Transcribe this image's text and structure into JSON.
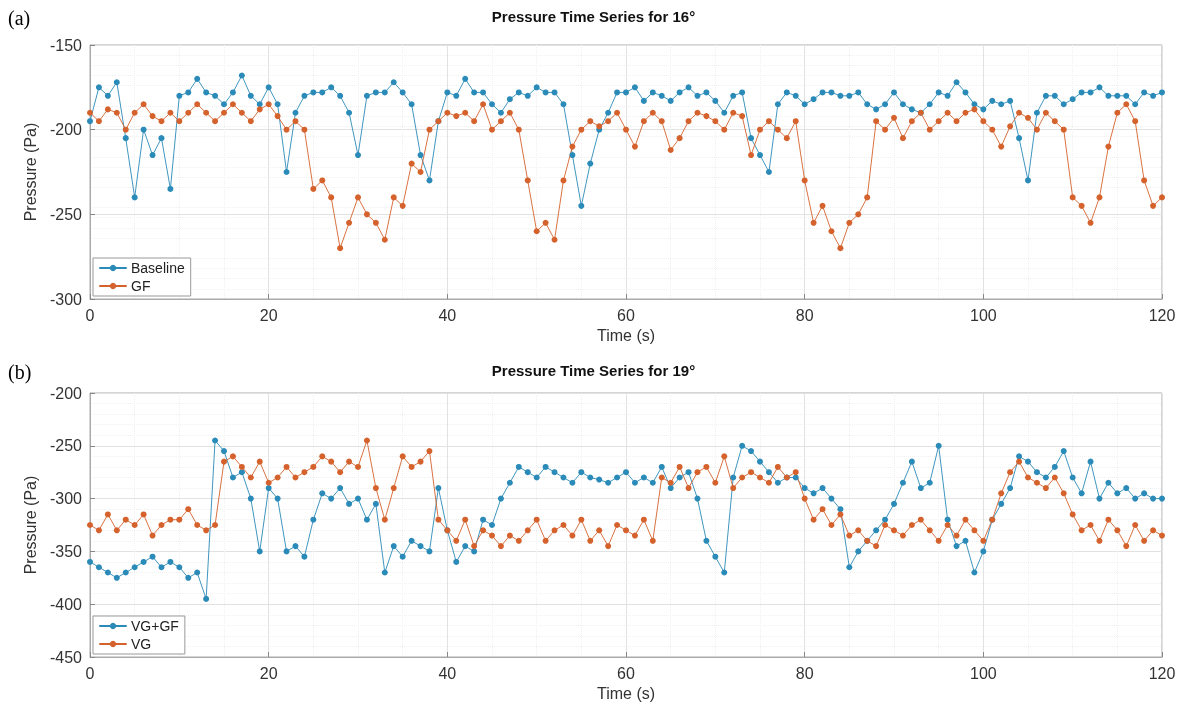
{
  "chart_data": [
    {
      "type": "line",
      "title": "Pressure Time Series for 16°",
      "xlabel": "Time (s)",
      "ylabel": "Pressure (Pa)",
      "annotations": [
        "(a)"
      ],
      "x": [
        0,
        1,
        2,
        3,
        4,
        5,
        6,
        7,
        8,
        9,
        10,
        11,
        12,
        13,
        14,
        15,
        16,
        17,
        18,
        19,
        20,
        21,
        22,
        23,
        24,
        25,
        26,
        27,
        28,
        29,
        30,
        31,
        32,
        33,
        34,
        35,
        36,
        37,
        38,
        39,
        40,
        41,
        42,
        43,
        44,
        45,
        46,
        47,
        48,
        49,
        50,
        51,
        52,
        53,
        54,
        55,
        56,
        57,
        58,
        59,
        60,
        61,
        62,
        63,
        64,
        65,
        66,
        67,
        68,
        69,
        70,
        71,
        72,
        73,
        74,
        75,
        76,
        77,
        78,
        79,
        80,
        81,
        82,
        83,
        84,
        85,
        86,
        87,
        88,
        89,
        90,
        91,
        92,
        93,
        94,
        95,
        96,
        97,
        98,
        99,
        100,
        101,
        102,
        103,
        104,
        105,
        106,
        107,
        108,
        109,
        110,
        111,
        112,
        113,
        114,
        115,
        116,
        117,
        118,
        119,
        120
      ],
      "series": [
        {
          "name": "Baseline",
          "color": "#2a8ab8",
          "values": [
            -195,
            -175,
            -180,
            -172,
            -205,
            -240,
            -200,
            -215,
            -205,
            -235,
            -180,
            -178,
            -170,
            -178,
            -180,
            -185,
            -178,
            -168,
            -180,
            -185,
            -175,
            -185,
            -225,
            -190,
            -180,
            -178,
            -178,
            -175,
            -180,
            -190,
            -215,
            -180,
            -178,
            -178,
            -172,
            -178,
            -185,
            -215,
            -230,
            -195,
            -178,
            -180,
            -170,
            -178,
            -178,
            -185,
            -190,
            -182,
            -178,
            -180,
            -175,
            -178,
            -178,
            -185,
            -215,
            -245,
            -220,
            -200,
            -190,
            -178,
            -178,
            -175,
            -183,
            -178,
            -180,
            -183,
            -178,
            -175,
            -180,
            -178,
            -183,
            -190,
            -180,
            -178,
            -205,
            -215,
            -225,
            -185,
            -178,
            -180,
            -185,
            -182,
            -178,
            -178,
            -180,
            -180,
            -178,
            -185,
            -188,
            -185,
            -178,
            -185,
            -188,
            -190,
            -185,
            -178,
            -180,
            -172,
            -178,
            -185,
            -188,
            -183,
            -185,
            -183,
            -205,
            -230,
            -190,
            -180,
            -180,
            -185,
            -182,
            -178,
            -178,
            -175,
            -180,
            -180,
            -180,
            -185,
            -178,
            -180,
            -178
          ]
        },
        {
          "name": "GF",
          "color": "#d5622c",
          "values": [
            -190,
            -195,
            -188,
            -190,
            -200,
            -190,
            -185,
            -192,
            -195,
            -190,
            -195,
            -190,
            -185,
            -190,
            -195,
            -190,
            -185,
            -190,
            -195,
            -188,
            -185,
            -192,
            -200,
            -195,
            -200,
            -235,
            -230,
            -240,
            -270,
            -255,
            -240,
            -250,
            -255,
            -265,
            -240,
            -245,
            -220,
            -225,
            -200,
            -195,
            -190,
            -192,
            -190,
            -195,
            -185,
            -200,
            -195,
            -190,
            -200,
            -230,
            -260,
            -255,
            -265,
            -230,
            -210,
            -200,
            -195,
            -198,
            -195,
            -190,
            -200,
            -210,
            -195,
            -190,
            -195,
            -212,
            -205,
            -195,
            -190,
            -192,
            -195,
            -200,
            -190,
            -192,
            -215,
            -200,
            -195,
            -200,
            -205,
            -195,
            -230,
            -255,
            -245,
            -260,
            -270,
            -255,
            -250,
            -240,
            -195,
            -200,
            -193,
            -205,
            -195,
            -190,
            -200,
            -195,
            -190,
            -195,
            -190,
            -188,
            -195,
            -200,
            -210,
            -198,
            -190,
            -193,
            -200,
            -190,
            -195,
            -200,
            -240,
            -245,
            -255,
            -240,
            -210,
            -190,
            -185,
            -195,
            -230,
            -245,
            -240
          ]
        }
      ],
      "xlim": [
        0,
        120
      ],
      "xticks": [
        0,
        20,
        40,
        60,
        80,
        100,
        120
      ],
      "ylim": [
        -300,
        -150
      ],
      "yticks": [
        -300,
        -250,
        -200,
        -150
      ],
      "grid": true,
      "legend": "bottom left",
      "marker": "circle",
      "line_style": "solid"
    },
    {
      "type": "line",
      "title": "Pressure Time Series for 19°",
      "xlabel": "Time (s)",
      "ylabel": "Pressure (Pa)",
      "annotations": [
        "(b)"
      ],
      "x": [
        0,
        1,
        2,
        3,
        4,
        5,
        6,
        7,
        8,
        9,
        10,
        11,
        12,
        13,
        14,
        15,
        16,
        17,
        18,
        19,
        20,
        21,
        22,
        23,
        24,
        25,
        26,
        27,
        28,
        29,
        30,
        31,
        32,
        33,
        34,
        35,
        36,
        37,
        38,
        39,
        40,
        41,
        42,
        43,
        44,
        45,
        46,
        47,
        48,
        49,
        50,
        51,
        52,
        53,
        54,
        55,
        56,
        57,
        58,
        59,
        60,
        61,
        62,
        63,
        64,
        65,
        66,
        67,
        68,
        69,
        70,
        71,
        72,
        73,
        74,
        75,
        76,
        77,
        78,
        79,
        80,
        81,
        82,
        83,
        84,
        85,
        86,
        87,
        88,
        89,
        90,
        91,
        92,
        93,
        94,
        95,
        96,
        97,
        98,
        99,
        100,
        101,
        102,
        103,
        104,
        105,
        106,
        107,
        108,
        109,
        110,
        111,
        112,
        113,
        114,
        115,
        116,
        117,
        118,
        119,
        120
      ],
      "series": [
        {
          "name": "VG+GF",
          "color": "#2a8ab8",
          "values": [
            -360,
            -365,
            -370,
            -375,
            -370,
            -365,
            -360,
            -355,
            -365,
            -360,
            -365,
            -375,
            -370,
            -395,
            -245,
            -255,
            -280,
            -275,
            -300,
            -350,
            -290,
            -300,
            -350,
            -345,
            -355,
            -320,
            -295,
            -300,
            -290,
            -305,
            -300,
            -320,
            -305,
            -370,
            -345,
            -355,
            -340,
            -345,
            -350,
            -290,
            -330,
            -360,
            -345,
            -350,
            -320,
            -325,
            -300,
            -285,
            -270,
            -275,
            -280,
            -270,
            -275,
            -280,
            -285,
            -275,
            -280,
            -282,
            -285,
            -280,
            -275,
            -285,
            -280,
            -285,
            -270,
            -290,
            -280,
            -275,
            -300,
            -340,
            -355,
            -370,
            -280,
            -250,
            -255,
            -265,
            -275,
            -285,
            -280,
            -280,
            -290,
            -295,
            -290,
            -300,
            -310,
            -365,
            -350,
            -340,
            -330,
            -320,
            -305,
            -285,
            -265,
            -290,
            -285,
            -250,
            -320,
            -345,
            -340,
            -370,
            -350,
            -320,
            -305,
            -290,
            -260,
            -265,
            -275,
            -280,
            -270,
            -255,
            -280,
            -295,
            -265,
            -300,
            -285,
            -295,
            -290,
            -300,
            -295,
            -300,
            -300
          ]
        },
        {
          "name": "VG",
          "color": "#d5622c",
          "values": [
            -325,
            -330,
            -315,
            -330,
            -320,
            -325,
            -315,
            -335,
            -325,
            -320,
            -320,
            -310,
            -325,
            -330,
            -325,
            -265,
            -260,
            -270,
            -280,
            -265,
            -285,
            -280,
            -270,
            -280,
            -275,
            -270,
            -260,
            -265,
            -275,
            -265,
            -270,
            -245,
            -290,
            -320,
            -290,
            -260,
            -270,
            -265,
            -255,
            -320,
            -330,
            -340,
            -320,
            -345,
            -330,
            -335,
            -345,
            -335,
            -340,
            -330,
            -320,
            -340,
            -330,
            -325,
            -335,
            -320,
            -340,
            -330,
            -345,
            -325,
            -330,
            -335,
            -320,
            -340,
            -280,
            -285,
            -270,
            -290,
            -275,
            -270,
            -285,
            -260,
            -290,
            -280,
            -275,
            -280,
            -285,
            -270,
            -280,
            -275,
            -300,
            -320,
            -310,
            -325,
            -315,
            -335,
            -330,
            -340,
            -345,
            -325,
            -330,
            -335,
            -325,
            -320,
            -330,
            -340,
            -325,
            -335,
            -320,
            -330,
            -340,
            -320,
            -295,
            -275,
            -265,
            -280,
            -285,
            -290,
            -280,
            -295,
            -315,
            -330,
            -325,
            -340,
            -320,
            -330,
            -345,
            -325,
            -340,
            -330,
            -335
          ]
        }
      ],
      "xlim": [
        0,
        120
      ],
      "xticks": [
        0,
        20,
        40,
        60,
        80,
        100,
        120
      ],
      "ylim": [
        -450,
        -200
      ],
      "yticks": [
        -450,
        -400,
        -350,
        -300,
        -250,
        -200
      ],
      "grid": true,
      "legend": "bottom left",
      "marker": "circle",
      "line_style": "solid"
    }
  ]
}
